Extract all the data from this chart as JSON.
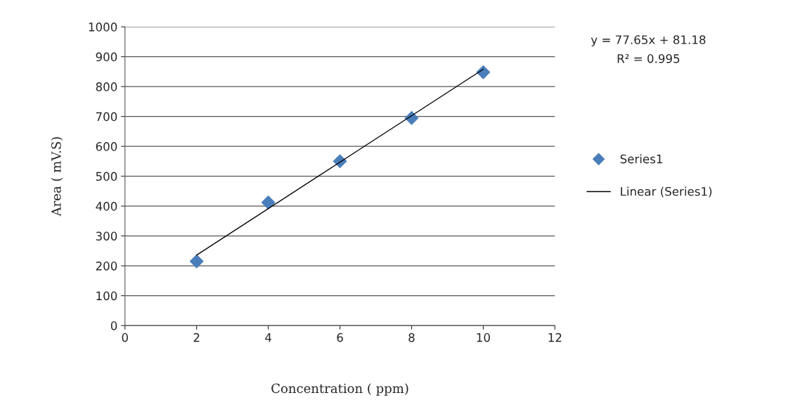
{
  "chart_data": {
    "type": "scatter",
    "xlabel": "Concentration ( ppm)",
    "ylabel": "Area ( mV.S)",
    "xlim": [
      0,
      12
    ],
    "xticks": [
      0,
      2,
      4,
      6,
      8,
      10,
      12
    ],
    "ylim": [
      0,
      1000
    ],
    "yticks": [
      0,
      100,
      200,
      300,
      400,
      500,
      600,
      700,
      800,
      900,
      1000
    ],
    "series": [
      {
        "name": "Series1",
        "color": "#4a7ebb",
        "marker": "diamond",
        "x": [
          2,
          4,
          6,
          8,
          10
        ],
        "values": [
          215,
          412,
          550,
          695,
          848
        ]
      },
      {
        "name": "Linear (Series1)",
        "type": "line",
        "color": "#000000",
        "marker": "none",
        "x": [
          2,
          10
        ],
        "values": [
          236,
          858
        ]
      }
    ],
    "annotations": [
      "y = 77.65x + 81.18",
      "R² = 0.995"
    ],
    "grid": "y",
    "legend": "right"
  }
}
